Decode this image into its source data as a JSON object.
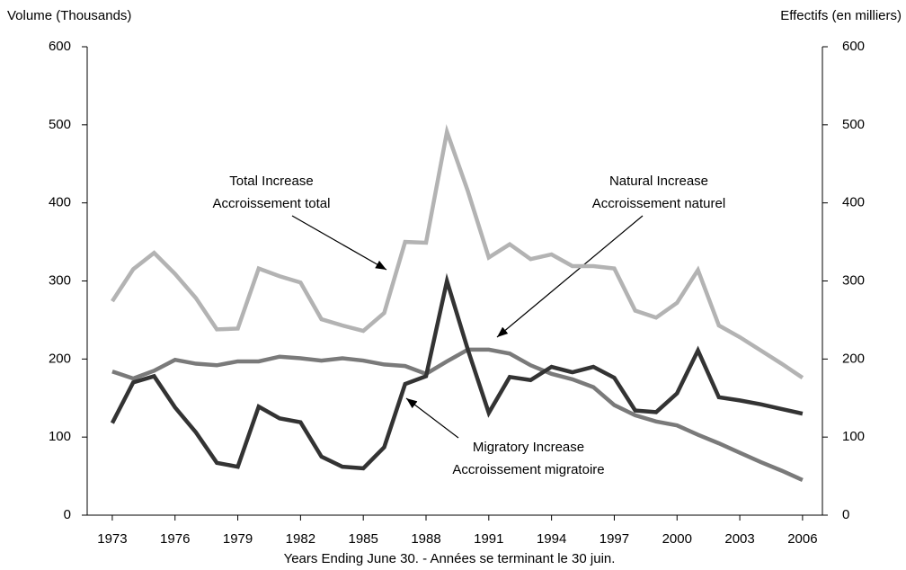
{
  "chart_data": {
    "type": "line",
    "y_axis_label": "Volume (Thousands)",
    "y2_axis_label": "Effectifs (en milliers)",
    "x_axis_label": "Years Ending June 30. - Années se terminant le 30 juin.",
    "x": [
      1973,
      1974,
      1975,
      1976,
      1977,
      1978,
      1979,
      1980,
      1981,
      1982,
      1983,
      1984,
      1985,
      1986,
      1987,
      1988,
      1989,
      1990,
      1991,
      1992,
      1993,
      1994,
      1995,
      1996,
      1997,
      1998,
      1999,
      2000,
      2001,
      2002,
      2003,
      2004,
      2005,
      2006
    ],
    "xlim": [
      1971.8,
      2006.95
    ],
    "xticks": [
      1973,
      1976,
      1979,
      1982,
      1985,
      1988,
      1991,
      1994,
      1997,
      2000,
      2003,
      2006
    ],
    "ylim": [
      0,
      600
    ],
    "yticks": [
      0,
      100,
      200,
      300,
      400,
      500,
      600
    ],
    "y2lim": [
      0,
      600
    ],
    "y2ticks": [
      0,
      100,
      200,
      300,
      400,
      500,
      600
    ],
    "grid": false,
    "series": [
      {
        "name": "Total Increase",
        "color": "#b3b3b3",
        "values": [
          274,
          315,
          336,
          309,
          278,
          238,
          239,
          316,
          306,
          298,
          251,
          243,
          236,
          259,
          350,
          349,
          491,
          415,
          330,
          347,
          328,
          334,
          319,
          319,
          316,
          262,
          253,
          272,
          314,
          243,
          228,
          211,
          194,
          176
        ]
      },
      {
        "name": "Natural Increase",
        "color": "#7a7a7a",
        "values": [
          184,
          175,
          185,
          199,
          194,
          192,
          197,
          197,
          203,
          201,
          198,
          201,
          198,
          193,
          191,
          181,
          197,
          212,
          212,
          207,
          192,
          181,
          174,
          164,
          141,
          128,
          120,
          115,
          103,
          92,
          80,
          68,
          57,
          45
        ]
      },
      {
        "name": "Migratory Increase",
        "color": "#333333",
        "values": [
          118,
          170,
          178,
          138,
          106,
          67,
          62,
          139,
          124,
          119,
          75,
          62,
          60,
          87,
          168,
          178,
          300,
          212,
          131,
          177,
          173,
          190,
          183,
          190,
          176,
          134,
          132,
          156,
          211,
          151,
          147,
          142,
          136,
          130
        ]
      }
    ],
    "annotations": [
      {
        "lines": [
          "Total Increase",
          "Accroissement total"
        ]
      },
      {
        "lines": [
          "Natural Increase",
          "Accroissement naturel"
        ]
      },
      {
        "lines": [
          "Migratory Increase",
          "Accroissement migratoire"
        ]
      }
    ]
  }
}
